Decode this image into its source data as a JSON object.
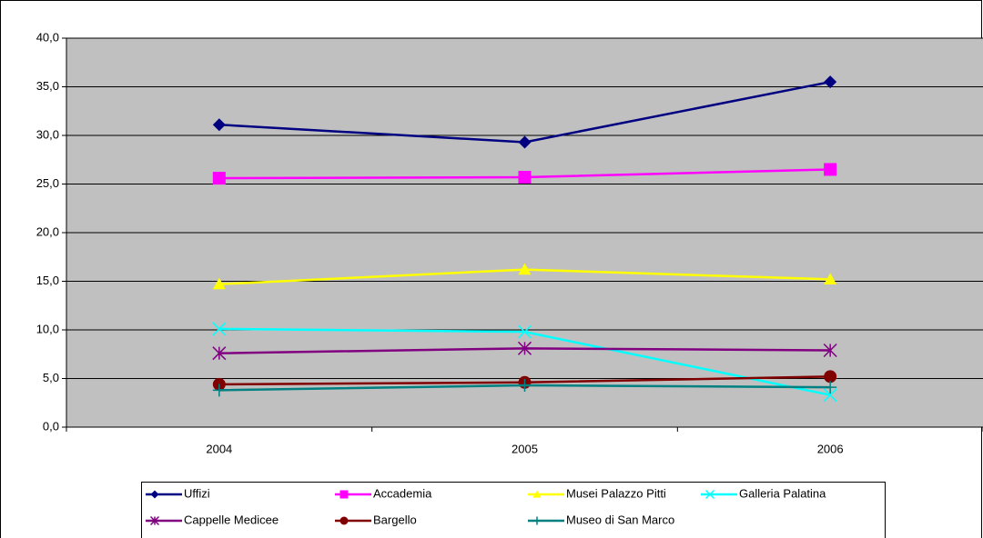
{
  "chart_data": {
    "type": "line",
    "categories": [
      "2004",
      "2005",
      "2006"
    ],
    "ylim": [
      0,
      40
    ],
    "yticks": [
      {
        "value": 0,
        "label": "0,0"
      },
      {
        "value": 5,
        "label": "5,0"
      },
      {
        "value": 10,
        "label": "10,0"
      },
      {
        "value": 15,
        "label": "15,0"
      },
      {
        "value": 20,
        "label": "20,0"
      },
      {
        "value": 25,
        "label": "25,0"
      },
      {
        "value": 30,
        "label": "30,0"
      },
      {
        "value": 35,
        "label": "35,0"
      },
      {
        "value": 40,
        "label": "40,0"
      }
    ],
    "grid": true,
    "legend": "bottom",
    "series": [
      {
        "name": "Uffizi",
        "color": "#000080",
        "marker": "diamond",
        "values": [
          31.1,
          29.3,
          35.5
        ]
      },
      {
        "name": "Accademia",
        "color": "#ff00ff",
        "marker": "square",
        "values": [
          25.6,
          25.7,
          26.5
        ]
      },
      {
        "name": "Musei Palazzo Pitti",
        "color": "#ffff00",
        "marker": "triangle",
        "values": [
          14.7,
          16.2,
          15.2
        ]
      },
      {
        "name": "Galleria Palatina",
        "color": "#00ffff",
        "marker": "x",
        "values": [
          10.1,
          9.8,
          3.3
        ]
      },
      {
        "name": "Cappelle Medicee",
        "color": "#800080",
        "marker": "asterisk",
        "values": [
          7.6,
          8.1,
          7.9
        ]
      },
      {
        "name": "Bargello",
        "color": "#800000",
        "marker": "circle",
        "values": [
          4.4,
          4.6,
          5.2
        ]
      },
      {
        "name": "Museo di San Marco",
        "color": "#008080",
        "marker": "plus",
        "values": [
          3.8,
          4.3,
          4.1
        ]
      }
    ]
  }
}
